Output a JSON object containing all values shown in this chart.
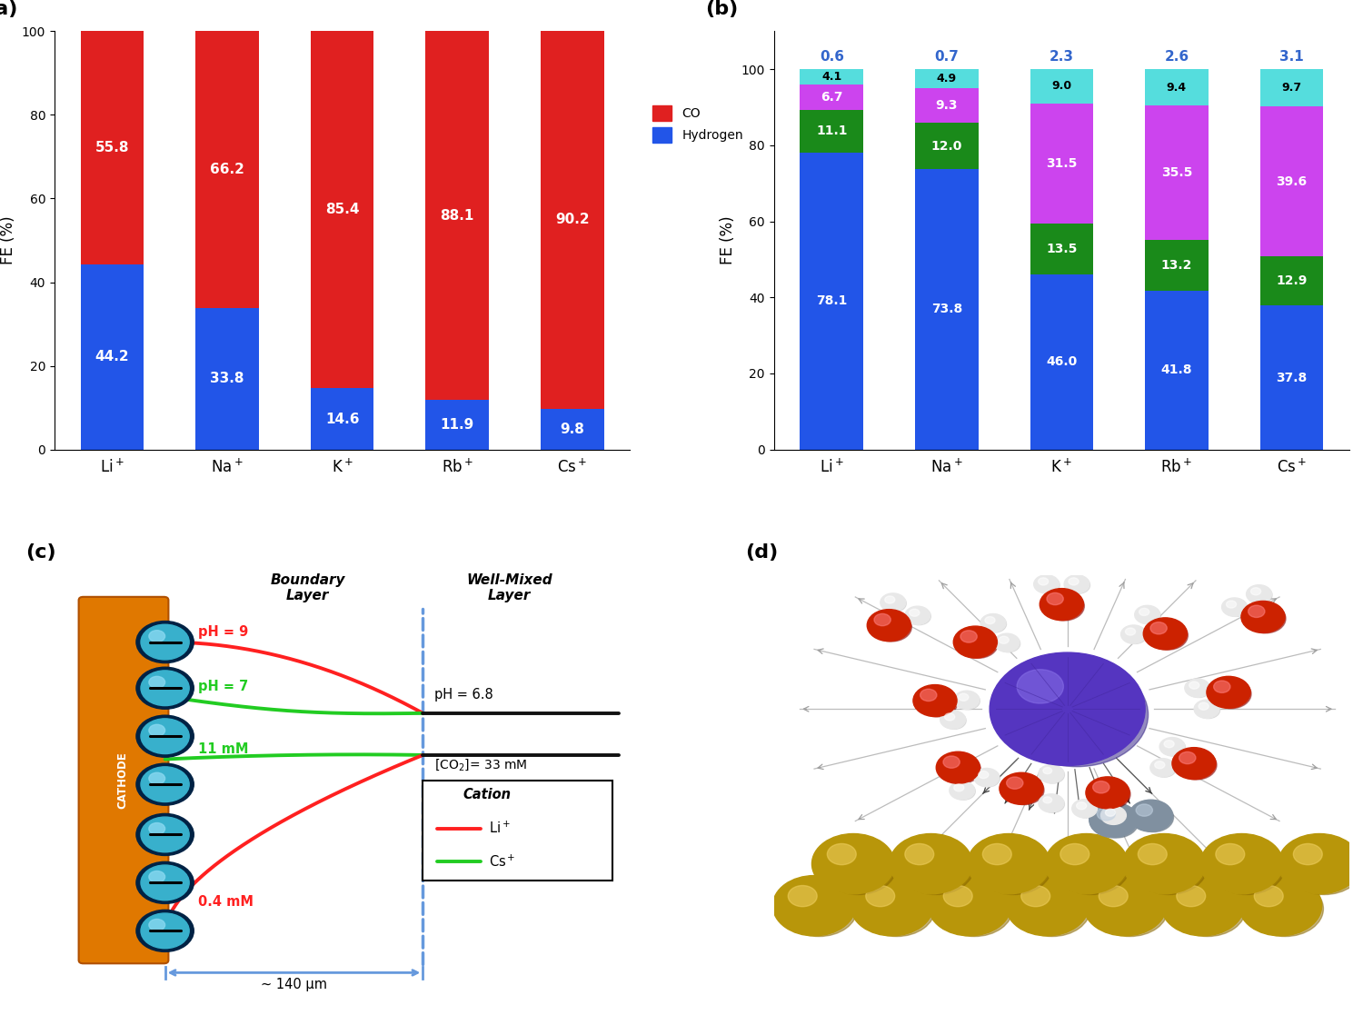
{
  "panel_a": {
    "categories": [
      "Li$^+$",
      "Na$^+$",
      "K$^+$",
      "Rb$^+$",
      "Cs$^+$"
    ],
    "hydrogen": [
      44.2,
      33.8,
      14.6,
      11.9,
      9.8
    ],
    "co": [
      55.8,
      66.2,
      85.4,
      88.1,
      90.2
    ],
    "co_color": "#e02020",
    "h2_color": "#2255e8",
    "ylabel": "FE (%)",
    "ylim": [
      0,
      100
    ]
  },
  "panel_b": {
    "categories": [
      "Li$^+$",
      "Na$^+$",
      "K$^+$",
      "Rb$^+$",
      "Cs$^+$"
    ],
    "hydrogen": [
      78.1,
      73.8,
      46.0,
      41.8,
      37.8
    ],
    "methane": [
      11.1,
      12.0,
      13.5,
      13.2,
      12.9
    ],
    "ethene": [
      6.7,
      9.3,
      31.5,
      35.5,
      39.6
    ],
    "ethanol": [
      4.1,
      4.9,
      9.0,
      9.4,
      9.7
    ],
    "ratios": [
      0.6,
      0.7,
      2.3,
      2.6,
      3.1
    ],
    "h2_color": "#2255e8",
    "methane_color": "#1a8a1a",
    "ethene_color": "#cc44ee",
    "ethanol_color": "#55dddd",
    "ylabel": "FE (%)",
    "ylim": [
      0,
      100
    ]
  },
  "panel_c": {
    "cathode_color": "#e07800",
    "cathode_edge": "#b05000",
    "button_outer": "#004488",
    "button_inner": "#30a0d0",
    "button_bar": "#000000",
    "red_line": "#ff2020",
    "green_line": "#22cc22",
    "dashed_line": "#6699dd",
    "black_line": "#111111"
  },
  "panel_d": {
    "cu_color": "#b8960a",
    "cu_dark": "#8a6800",
    "cu_highlight": "#f0d060",
    "ion_color": "#5535c0",
    "ion_highlight": "#8870e8",
    "o_color": "#cc2200",
    "h_color": "#e8e8e8",
    "gray_color": "#8090a0",
    "field_color": "#a0a0a0"
  }
}
